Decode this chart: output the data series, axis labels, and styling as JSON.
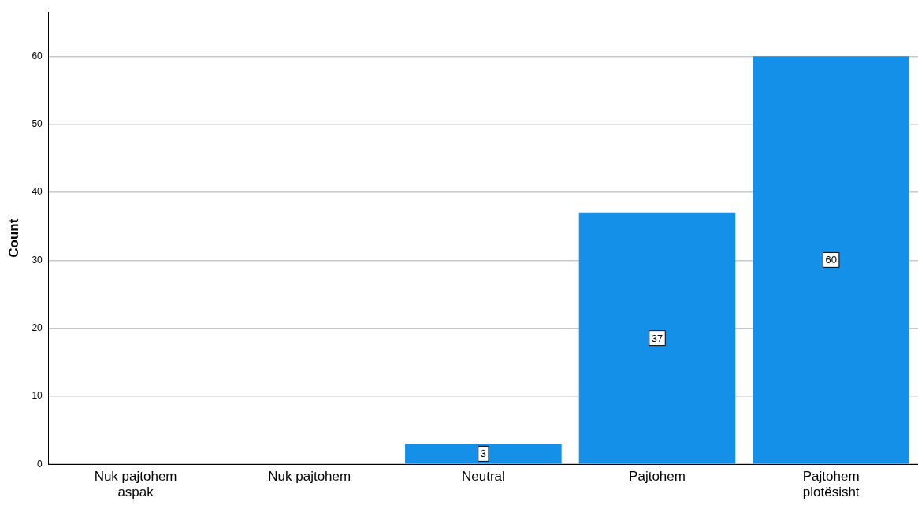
{
  "chart_data": {
    "type": "bar",
    "ylabel": "Count",
    "categories": [
      "Nuk pajtohem aspak",
      "Nuk pajtohem",
      "Neutral",
      "Pajtohem",
      "Pajtohem plotësisht"
    ],
    "values": [
      0,
      0,
      3,
      37,
      60
    ],
    "value_labels": [
      null,
      null,
      "3",
      "37",
      "60"
    ],
    "color": "#1590e8",
    "ylim": [
      0,
      66.5
    ],
    "yticks": [
      0,
      10,
      20,
      30,
      40,
      50,
      60
    ],
    "grid": "y",
    "legend": false
  }
}
